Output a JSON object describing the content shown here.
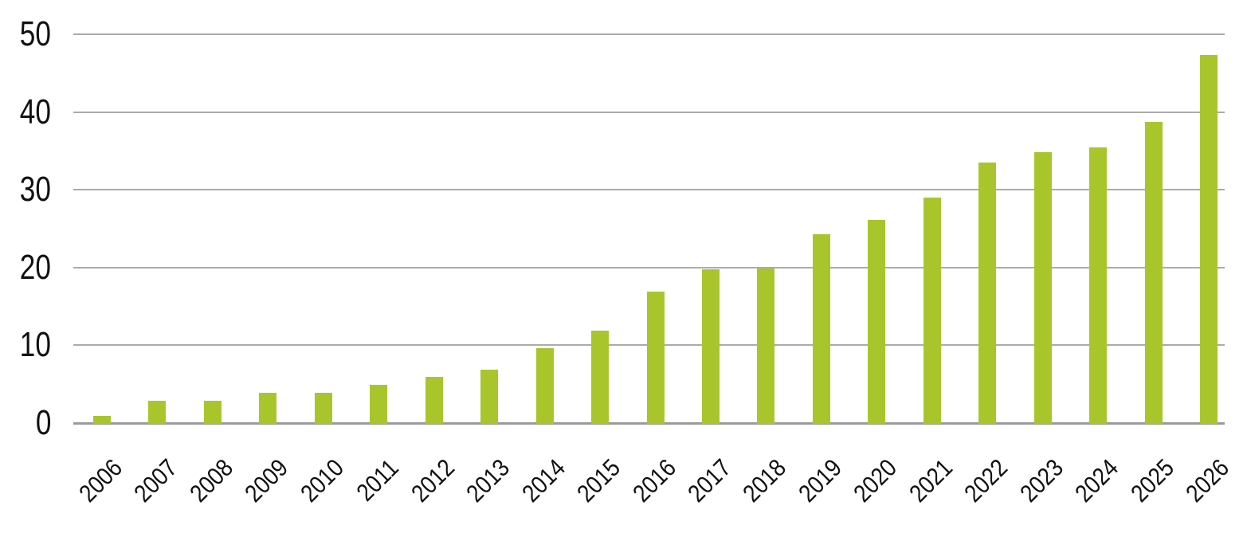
{
  "chart_data": {
    "type": "bar",
    "title": "",
    "xlabel": "",
    "ylabel": "",
    "categories": [
      "2006",
      "2007",
      "2008",
      "2009",
      "2010",
      "2011",
      "2012",
      "2013",
      "2014",
      "2015",
      "2016",
      "2017",
      "2018",
      "2019",
      "2020",
      "2021",
      "2022",
      "2023",
      "2024",
      "2025",
      "2026"
    ],
    "values": [
      1,
      3,
      3,
      4,
      4,
      5,
      6,
      7,
      9.7,
      12,
      17,
      19.9,
      20,
      24.4,
      26.2,
      29.1,
      33.6,
      34.9,
      35.6,
      38.8,
      47.4
    ],
    "ylim": [
      0,
      50
    ],
    "yticks": [
      0,
      10,
      20,
      30,
      40,
      50
    ],
    "grid": true,
    "legend": false,
    "bar_color": "#a8c62c",
    "gridline_color": "#ababab",
    "axis_line_color": "#9b9b9b",
    "label_color": "#111111",
    "background": "#ffffff"
  }
}
